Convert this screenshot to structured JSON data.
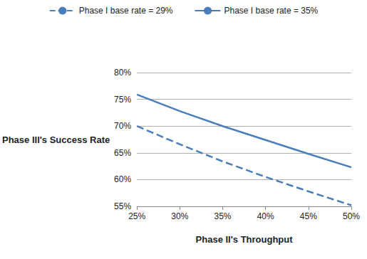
{
  "chart_data": {
    "type": "line",
    "x_label": "Phase II's Throughput",
    "y_label": "Phase III's Success Rate",
    "x": [
      25,
      30,
      35,
      40,
      45,
      50
    ],
    "series": [
      {
        "name": "Phase I base rate = 29%",
        "color": "#4a7ebb",
        "line_style": "dashed",
        "values": [
          70.0,
          66.6,
          63.4,
          60.5,
          57.8,
          55.2
        ]
      },
      {
        "name": "Phase I base rate = 35%",
        "color": "#4a7ebb",
        "line_style": "solid",
        "values": [
          75.9,
          72.8,
          70.0,
          67.4,
          64.8,
          62.3
        ]
      }
    ],
    "xlim": [
      25,
      50
    ],
    "xticks": [
      {
        "value": 25,
        "label": "25%"
      },
      {
        "value": 30,
        "label": "30%"
      },
      {
        "value": 35,
        "label": "35%"
      },
      {
        "value": 40,
        "label": "40%"
      },
      {
        "value": 45,
        "label": "45%"
      },
      {
        "value": 50,
        "label": "50%"
      }
    ],
    "ylim": [
      55,
      80
    ],
    "yticks": [
      {
        "value": 55,
        "label": "55%"
      },
      {
        "value": 60,
        "label": "60%"
      },
      {
        "value": 65,
        "label": "65%"
      },
      {
        "value": 70,
        "label": "70%"
      },
      {
        "value": 75,
        "label": "75%"
      },
      {
        "value": 80,
        "label": "80%"
      }
    ],
    "grid": true,
    "legend": "top",
    "marker": "none"
  }
}
